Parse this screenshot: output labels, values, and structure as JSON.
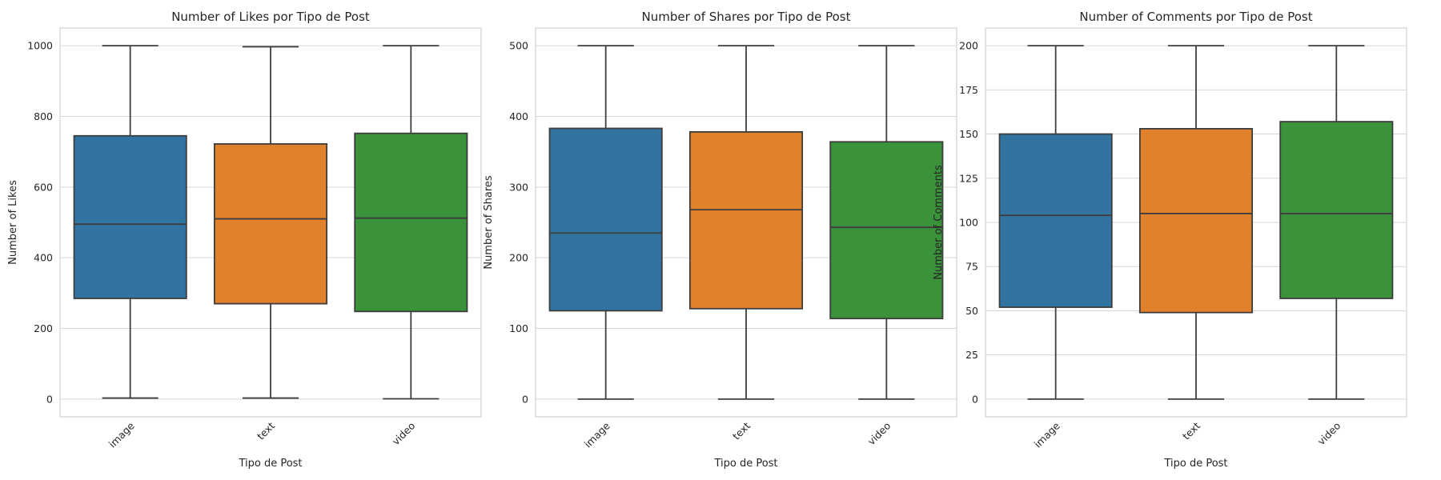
{
  "chart_data": [
    {
      "type": "box",
      "title": "Number of Likes por Tipo de Post",
      "xlabel": "Tipo de Post",
      "ylabel": "Number of Likes",
      "categories": [
        "image",
        "text",
        "video"
      ],
      "ylim": [
        -50,
        1050
      ],
      "yticks": [
        0,
        200,
        400,
        600,
        800,
        1000
      ],
      "grid": true,
      "boxes": [
        {
          "category": "image",
          "min": 3,
          "q1": 285,
          "median": 495,
          "q3": 745,
          "max": 1000
        },
        {
          "category": "text",
          "min": 3,
          "q1": 270,
          "median": 510,
          "q3": 722,
          "max": 997
        },
        {
          "category": "video",
          "min": 1,
          "q1": 248,
          "median": 512,
          "q3": 752,
          "max": 1000
        }
      ]
    },
    {
      "type": "box",
      "title": "Number of Shares por Tipo de Post",
      "xlabel": "Tipo de Post",
      "ylabel": "Number of Shares",
      "categories": [
        "image",
        "text",
        "video"
      ],
      "ylim": [
        -25,
        525
      ],
      "yticks": [
        0,
        100,
        200,
        300,
        400,
        500
      ],
      "grid": true,
      "boxes": [
        {
          "category": "image",
          "min": 0,
          "q1": 125,
          "median": 235,
          "q3": 383,
          "max": 500
        },
        {
          "category": "text",
          "min": 0,
          "q1": 128,
          "median": 268,
          "q3": 378,
          "max": 500
        },
        {
          "category": "video",
          "min": 0,
          "q1": 114,
          "median": 243,
          "q3": 364,
          "max": 500
        }
      ]
    },
    {
      "type": "box",
      "title": "Number of Comments por Tipo de Post",
      "xlabel": "Tipo de Post",
      "ylabel": "Number of Comments",
      "categories": [
        "image",
        "text",
        "video"
      ],
      "ylim": [
        -10,
        210
      ],
      "yticks": [
        0,
        25,
        50,
        75,
        100,
        125,
        150,
        175,
        200
      ],
      "grid": true,
      "boxes": [
        {
          "category": "image",
          "min": 0,
          "q1": 52,
          "median": 104,
          "q3": 150,
          "max": 200
        },
        {
          "category": "text",
          "min": 0,
          "q1": 49,
          "median": 105,
          "q3": 153,
          "max": 200
        },
        {
          "category": "video",
          "min": 0,
          "q1": 57,
          "median": 105,
          "q3": 157,
          "max": 200
        }
      ]
    }
  ],
  "colors": {
    "image": "#3274a1",
    "text": "#e1812c",
    "video": "#3a923a",
    "line": "#3d3d3d",
    "grid": "#d6d6d6",
    "frame": "#d0d0d0"
  }
}
